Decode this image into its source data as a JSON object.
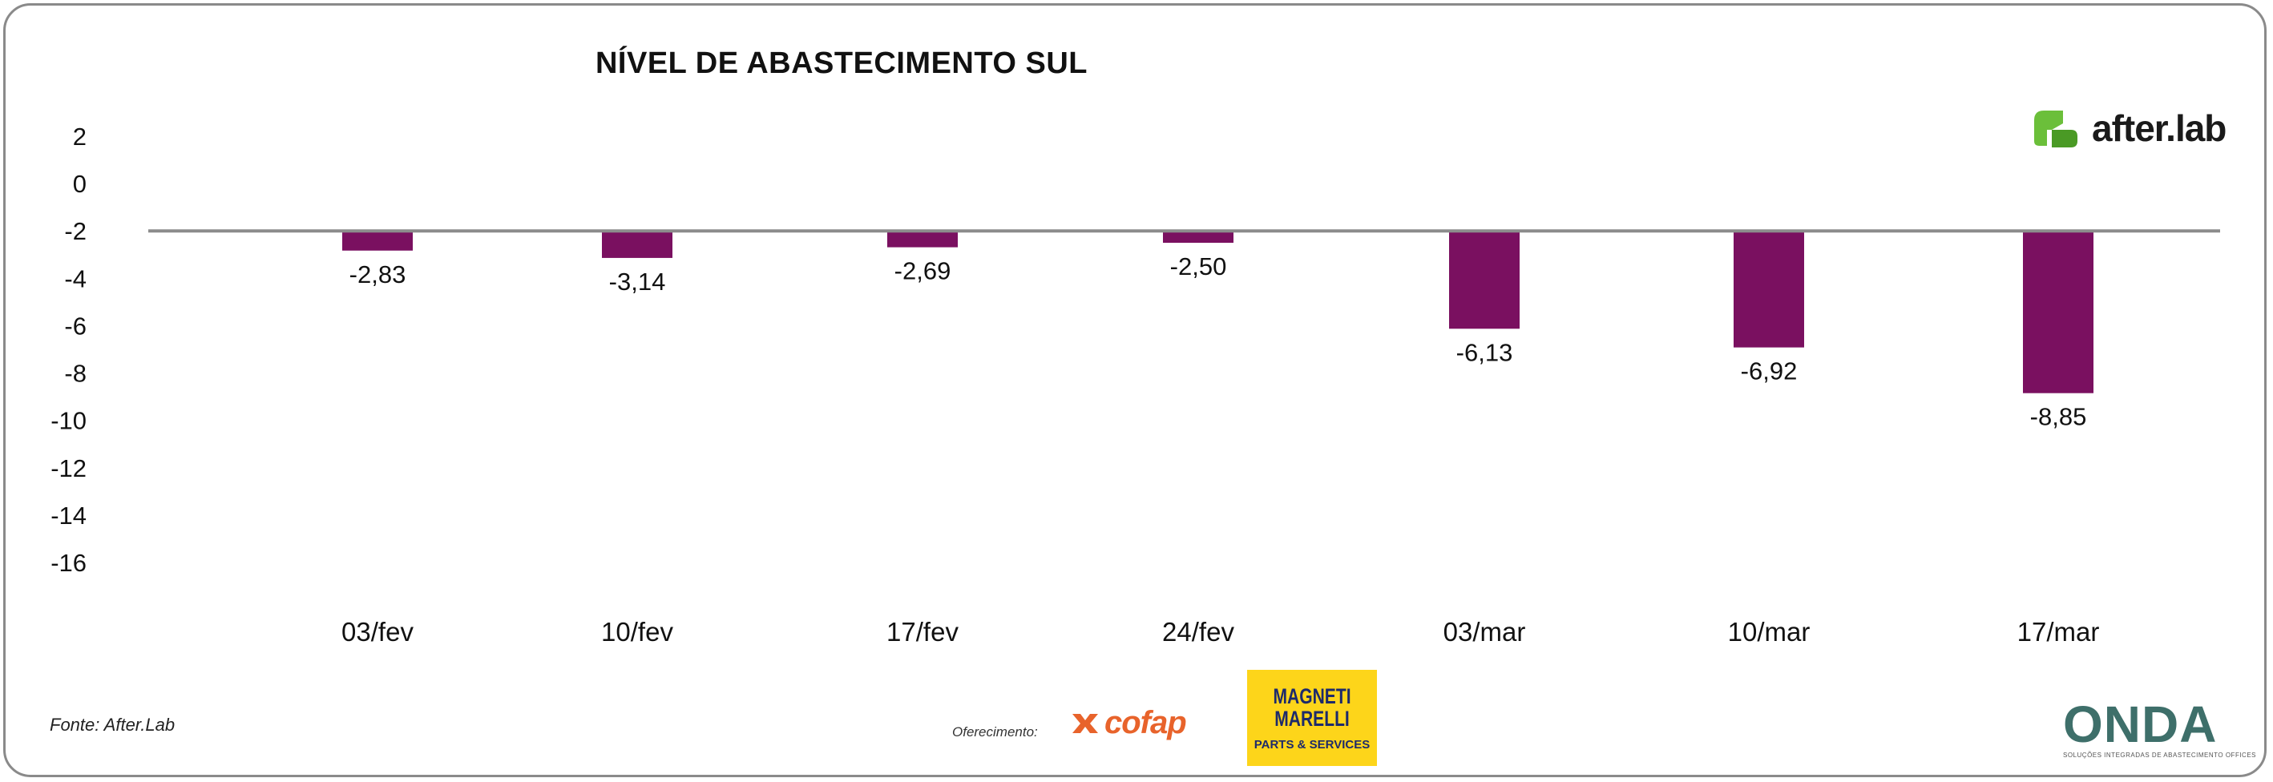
{
  "chart_data": {
    "type": "bar",
    "title": "NÍVEL DE ABASTECIMENTO SUL",
    "categories": [
      "03/fev",
      "10/fev",
      "17/fev",
      "24/fev",
      "03/mar",
      "10/mar",
      "17/mar"
    ],
    "values": [
      -2.83,
      -3.14,
      -2.69,
      -2.5,
      -6.13,
      -6.92,
      -8.85
    ],
    "value_labels": [
      "-2,83",
      "-3,14",
      "-2,69",
      "-2,50",
      "-6,13",
      "-6,92",
      "-8,85"
    ],
    "y_ticks": [
      2,
      0,
      -2,
      -4,
      -6,
      -8,
      -10,
      -12,
      -14,
      -16
    ],
    "y_tick_labels": [
      "2",
      "0",
      "-2",
      "-4",
      "-6",
      "-8",
      "-10",
      "-12",
      "-14",
      "-16"
    ],
    "ylim": [
      -16,
      2
    ],
    "baseline": -2,
    "bar_color": "#7a1060",
    "baseline_color": "#8c8c8c",
    "grid": false,
    "legend": "none",
    "xlabel": "",
    "ylabel": ""
  },
  "brand": {
    "name": "after.lab",
    "color": "#6bbf3a",
    "icon": "afterlab-logo-icon"
  },
  "footer": {
    "source": "Fonte: After.Lab",
    "offer_label": "Oferecimento:",
    "sponsors": [
      {
        "name": "cofap",
        "color": "#e8632b",
        "icon": "cofap-logo-icon"
      },
      {
        "name": "MAGNETI MARELLI",
        "subtitle": "PARTS & SERVICES",
        "bg": "#fdd51a",
        "fg": "#1d2a6b"
      }
    ],
    "onda": {
      "name": "ONDA",
      "subtitle": "SOLUÇÕES INTEGRADAS DE ABASTECIMENTO OFFICES"
    }
  }
}
